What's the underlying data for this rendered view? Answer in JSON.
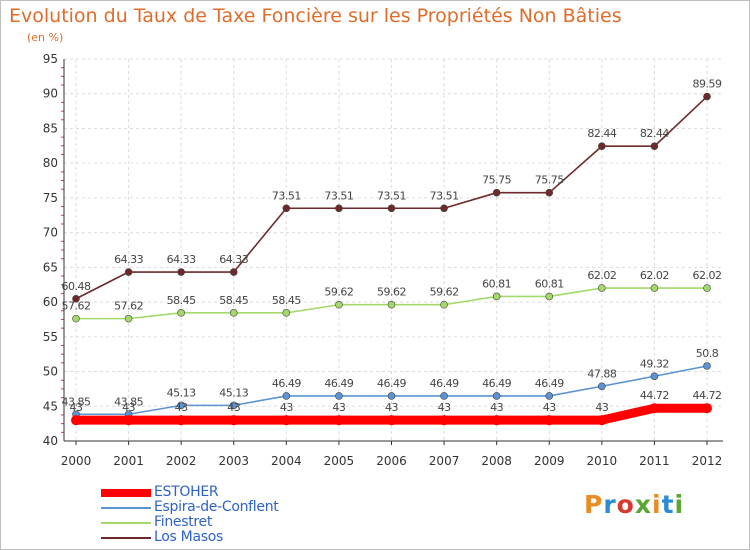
{
  "title": "Evolution du Taux de Taxe Foncière sur les Propriétés Non Bâties",
  "unit_label": "(en %)",
  "logo": {
    "text": "Proxiti",
    "letters": [
      {
        "ch": "P",
        "color": "#e98d23"
      },
      {
        "ch": "r",
        "color": "#2b8cd6"
      },
      {
        "ch": "o",
        "color": "#d9382f"
      },
      {
        "ch": "x",
        "color": "#5aa631"
      },
      {
        "ch": "i",
        "color": "#e98d23"
      },
      {
        "ch": "t",
        "color": "#2b8cd6"
      },
      {
        "ch": "i",
        "color": "#5aa631"
      }
    ]
  },
  "chart_data": {
    "type": "line",
    "title": "Evolution du Taux de Taxe Foncière sur les Propriétés Non Bâties",
    "ylabel": "(en %)",
    "xlabel": "",
    "x": [
      "2000",
      "2001",
      "2002",
      "2003",
      "2004",
      "2005",
      "2006",
      "2007",
      "2008",
      "2009",
      "2010",
      "2011",
      "2012"
    ],
    "ylim": [
      40,
      95
    ],
    "yticks": [
      "40",
      "45",
      "50",
      "55",
      "60",
      "65",
      "70",
      "75",
      "80",
      "85",
      "90",
      "95"
    ],
    "grid": true,
    "legend_position": "bottom-left",
    "series": [
      {
        "name": "ESTOHER",
        "color": "#ff0000",
        "style": "thick",
        "values": [
          43,
          43,
          43,
          43,
          43,
          43,
          43,
          43,
          43,
          43,
          43,
          44.72,
          44.72
        ],
        "labels": [
          "43",
          "43",
          "43",
          "43",
          "43",
          "43",
          "43",
          "43",
          "43",
          "43",
          "43",
          "44.72",
          "44.72"
        ]
      },
      {
        "name": "Espira-de-Conflent",
        "color": "#5b93d3",
        "style": "thin",
        "values": [
          43.85,
          43.85,
          45.13,
          45.13,
          46.49,
          46.49,
          46.49,
          46.49,
          46.49,
          46.49,
          47.88,
          49.32,
          50.8
        ],
        "labels": [
          "43.85",
          "43.85",
          "45.13",
          "45.13",
          "46.49",
          "46.49",
          "46.49",
          "46.49",
          "46.49",
          "46.49",
          "47.88",
          "49.32",
          "50.8"
        ]
      },
      {
        "name": "Finestret",
        "color": "#a3d86b",
        "style": "thin",
        "values": [
          57.62,
          57.62,
          58.45,
          58.45,
          58.45,
          59.62,
          59.62,
          59.62,
          60.81,
          60.81,
          62.02,
          62.02,
          62.02
        ],
        "labels": [
          "57.62",
          "57.62",
          "58.45",
          "58.45",
          "58.45",
          "59.62",
          "59.62",
          "59.62",
          "60.81",
          "60.81",
          "62.02",
          "62.02",
          "62.02"
        ]
      },
      {
        "name": "Los Masos",
        "color": "#6e2a2a",
        "style": "thin",
        "values": [
          60.48,
          64.33,
          64.33,
          64.33,
          73.51,
          73.51,
          73.51,
          73.51,
          75.75,
          75.75,
          82.44,
          82.44,
          89.59
        ],
        "labels": [
          "60.48",
          "64.33",
          "64.33",
          "64.33",
          "73.51",
          "73.51",
          "73.51",
          "73.51",
          "75.75",
          "75.75",
          "82.44",
          "82.44",
          "89.59"
        ]
      }
    ]
  }
}
